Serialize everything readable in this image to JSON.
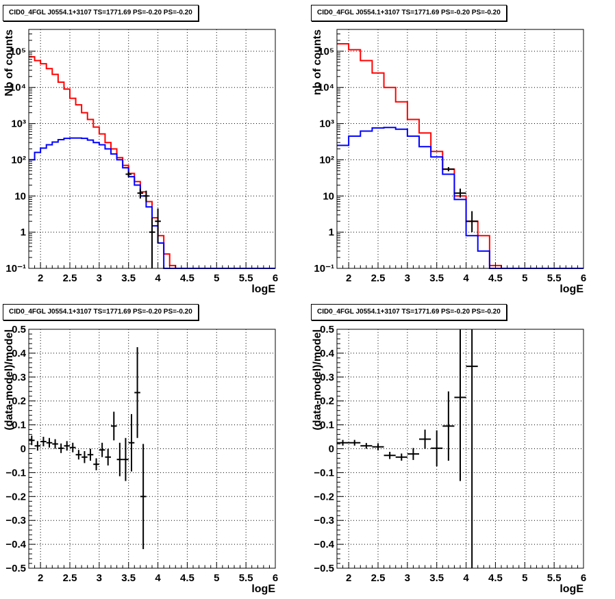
{
  "chart_data": [
    {
      "id": "tl",
      "type": "step-histogram",
      "title": "CID0_4FGL J0554.1+3107 TS=1771.69 PS=-0.20 PS=-0.20",
      "xlabel": "logE",
      "ylabel": "Nb of counts",
      "xlim": [
        1.8,
        6.0
      ],
      "ylim": [
        0.1,
        400000
      ],
      "yscale": "log",
      "grid": true,
      "x_ticks": [
        "2",
        "2.5",
        "3",
        "3.5",
        "4",
        "4.5",
        "5",
        "5.5",
        "6"
      ],
      "x_tick_values": [
        2,
        2.5,
        3,
        3.5,
        4,
        4.5,
        5,
        5.5,
        6
      ],
      "y_ticks": [
        "10⁻¹",
        "1",
        "10",
        "10²",
        "10³",
        "10⁴",
        "10⁵"
      ],
      "y_tick_values": [
        0.1,
        1,
        10,
        100,
        1000,
        10000,
        100000
      ],
      "bin_edges": [
        1.8,
        1.9,
        2.0,
        2.1,
        2.2,
        2.3,
        2.4,
        2.5,
        2.6,
        2.7,
        2.8,
        2.9,
        3.0,
        3.1,
        3.2,
        3.3,
        3.4,
        3.5,
        3.6,
        3.7,
        3.8,
        3.9,
        4.0,
        4.1,
        4.2,
        4.3,
        4.4,
        4.5,
        4.6,
        4.7,
        4.8,
        4.9,
        5.0,
        5.1,
        5.2,
        5.3,
        5.4,
        5.5,
        5.6,
        5.7,
        5.8,
        5.9,
        6.0
      ],
      "series": [
        {
          "color": "#ff0000",
          "values": [
            70000,
            55000,
            45000,
            33000,
            23000,
            14000,
            9000,
            5000,
            3300,
            2000,
            1300,
            800,
            520,
            300,
            200,
            115,
            70,
            42,
            25,
            13,
            7,
            2.5,
            0.8,
            0.25,
            0.12,
            0.1,
            0.1,
            0.1,
            0.1,
            0.1,
            0.1,
            0.1,
            0.1,
            0.1,
            0.1,
            0.1,
            0.1,
            0.1,
            0.1,
            0.1,
            0.1,
            0.1
          ]
        },
        {
          "color": "#0000ff",
          "values": [
            100,
            160,
            210,
            260,
            310,
            360,
            390,
            400,
            400,
            390,
            350,
            300,
            260,
            200,
            145,
            100,
            60,
            34,
            20,
            10,
            5,
            1.5,
            0.5,
            0.1,
            0.1,
            0.1,
            0.1,
            0.1,
            0.1,
            0.1,
            0.1,
            0.1,
            0.1,
            0.1,
            0.1,
            0.1,
            0.1,
            0.1,
            0.1,
            0.1,
            0.1,
            0.1
          ]
        }
      ],
      "data_points": [
        {
          "x": 3.5,
          "y": 40,
          "xerr": 0.05,
          "ylo": 34,
          "yhi": 47
        },
        {
          "x": 3.7,
          "y": 12,
          "xerr": 0.05,
          "ylo": 8.5,
          "yhi": 16
        },
        {
          "x": 3.8,
          "y": 10,
          "xerr": 0.05,
          "ylo": 7,
          "yhi": 14
        },
        {
          "x": 3.9,
          "y": 1,
          "xerr": 0.05,
          "ylo": 0.1,
          "yhi": 2.5
        },
        {
          "x": 4.0,
          "y": 2,
          "xerr": 0.05,
          "ylo": 0.5,
          "yhi": 4.5
        }
      ]
    },
    {
      "id": "tr",
      "type": "step-histogram",
      "title": "CID0_4FGL J0554.1+3107 TS=1771.69 PS=-0.20 PS=-0.20",
      "xlabel": "logE",
      "ylabel": "nb of counts",
      "xlim": [
        1.8,
        6.0
      ],
      "ylim": [
        0.1,
        400000
      ],
      "yscale": "log",
      "grid": true,
      "x_ticks": [
        "2",
        "2.5",
        "3",
        "3.5",
        "4",
        "4.5",
        "5",
        "5.5",
        "6"
      ],
      "x_tick_values": [
        2,
        2.5,
        3,
        3.5,
        4,
        4.5,
        5,
        5.5,
        6
      ],
      "y_ticks": [
        "10⁻¹",
        "1",
        "10",
        "10²",
        "10³",
        "10⁴",
        "10⁵"
      ],
      "y_tick_values": [
        0.1,
        1,
        10,
        100,
        1000,
        10000,
        100000
      ],
      "bin_edges": [
        1.8,
        2.0,
        2.2,
        2.4,
        2.6,
        2.8,
        3.0,
        3.2,
        3.4,
        3.6,
        3.8,
        4.0,
        4.2,
        4.4,
        4.6,
        4.8,
        5.0,
        5.2,
        5.4,
        5.6,
        5.8,
        6.0
      ],
      "series": [
        {
          "color": "#ff0000",
          "values": [
            160000,
            110000,
            55000,
            25000,
            10000,
            4000,
            1300,
            550,
            170,
            55,
            10,
            2,
            0.8,
            0.12,
            0.1,
            0.1,
            0.1,
            0.1,
            0.1,
            0.1,
            0.1
          ]
        },
        {
          "color": "#0000ff",
          "values": [
            250,
            450,
            620,
            760,
            780,
            700,
            450,
            230,
            120,
            40,
            8,
            0.8,
            0.3,
            0.1,
            0.1,
            0.1,
            0.1,
            0.1,
            0.1,
            0.1,
            0.1
          ]
        }
      ],
      "data_points": [
        {
          "x": 3.7,
          "y": 55,
          "xerr": 0.1,
          "ylo": 48,
          "yhi": 63
        },
        {
          "x": 3.9,
          "y": 12,
          "xerr": 0.1,
          "ylo": 9,
          "yhi": 16
        },
        {
          "x": 4.1,
          "y": 2,
          "xerr": 0.1,
          "ylo": 1,
          "yhi": 3.8
        }
      ]
    },
    {
      "id": "bl",
      "type": "scatter-errorbars",
      "title": "CID0_4FGL J0554.1+3107 TS=1771.69 PS=-0.20 PS=-0.20",
      "xlabel": "logE",
      "ylabel": "(data-model)/model",
      "xlim": [
        1.8,
        6.0
      ],
      "ylim": [
        -0.5,
        0.5
      ],
      "yscale": "linear",
      "grid": true,
      "x_ticks": [
        "2",
        "2.5",
        "3",
        "3.5",
        "4",
        "4.5",
        "5",
        "5.5",
        "6"
      ],
      "x_tick_values": [
        2,
        2.5,
        3,
        3.5,
        4,
        4.5,
        5,
        5.5,
        6
      ],
      "y_ticks": [
        "−0.5",
        "−0.4",
        "−0.3",
        "−0.2",
        "−0.1",
        "0",
        "0.1",
        "0.2",
        "0.3",
        "0.4",
        "0.5"
      ],
      "y_tick_values": [
        -0.5,
        -0.4,
        -0.3,
        -0.2,
        -0.1,
        0,
        0.1,
        0.2,
        0.3,
        0.4,
        0.5
      ],
      "data_points": [
        {
          "x": 1.85,
          "y": 0.035,
          "xerr": 0.05,
          "yerr": 0.02
        },
        {
          "x": 1.95,
          "y": 0.012,
          "xerr": 0.05,
          "yerr": 0.02
        },
        {
          "x": 2.05,
          "y": 0.03,
          "xerr": 0.05,
          "yerr": 0.02
        },
        {
          "x": 2.15,
          "y": 0.025,
          "xerr": 0.05,
          "yerr": 0.02
        },
        {
          "x": 2.25,
          "y": 0.02,
          "xerr": 0.05,
          "yerr": 0.02
        },
        {
          "x": 2.35,
          "y": 0.002,
          "xerr": 0.05,
          "yerr": 0.02
        },
        {
          "x": 2.45,
          "y": 0.012,
          "xerr": 0.05,
          "yerr": 0.02
        },
        {
          "x": 2.55,
          "y": 0.005,
          "xerr": 0.05,
          "yerr": 0.02
        },
        {
          "x": 2.65,
          "y": -0.025,
          "xerr": 0.05,
          "yerr": 0.02
        },
        {
          "x": 2.75,
          "y": -0.035,
          "xerr": 0.05,
          "yerr": 0.025
        },
        {
          "x": 2.85,
          "y": -0.025,
          "xerr": 0.05,
          "yerr": 0.025
        },
        {
          "x": 2.95,
          "y": -0.065,
          "xerr": 0.05,
          "yerr": 0.025
        },
        {
          "x": 3.05,
          "y": -0.005,
          "xerr": 0.05,
          "yerr": 0.03
        },
        {
          "x": 3.15,
          "y": -0.035,
          "xerr": 0.05,
          "yerr": 0.035
        },
        {
          "x": 3.25,
          "y": 0.095,
          "xerr": 0.05,
          "yerr": 0.06
        },
        {
          "x": 3.35,
          "y": -0.045,
          "xerr": 0.05,
          "yerr": 0.07
        },
        {
          "x": 3.45,
          "y": -0.045,
          "xerr": 0.05,
          "yerr": 0.09
        },
        {
          "x": 3.55,
          "y": 0.025,
          "xerr": 0.05,
          "yerr": 0.12
        },
        {
          "x": 3.65,
          "y": 0.235,
          "xerr": 0.05,
          "yerr": 0.19
        },
        {
          "x": 3.75,
          "y": -0.2,
          "xerr": 0.05,
          "yerr": 0.22
        }
      ]
    },
    {
      "id": "br",
      "type": "scatter-errorbars",
      "title": "CID0_4FGL J0554.1+3107 TS=1771.69 PS=-0.20 PS=-0.20",
      "xlabel": "logE",
      "ylabel": "(data-model)/model",
      "xlim": [
        1.8,
        6.0
      ],
      "ylim": [
        -0.5,
        0.5
      ],
      "yscale": "linear",
      "grid": true,
      "x_ticks": [
        "2",
        "2.5",
        "3",
        "3.5",
        "4",
        "4.5",
        "5",
        "5.5",
        "6"
      ],
      "x_tick_values": [
        2,
        2.5,
        3,
        3.5,
        4,
        4.5,
        5,
        5.5,
        6
      ],
      "y_ticks": [
        "−0.5",
        "−0.4",
        "−0.3",
        "−0.2",
        "−0.1",
        "0",
        "0.1",
        "0.2",
        "0.3",
        "0.4",
        "0.5"
      ],
      "y_tick_values": [
        -0.5,
        -0.4,
        -0.3,
        -0.2,
        -0.1,
        0,
        0.1,
        0.2,
        0.3,
        0.4,
        0.5
      ],
      "data_points": [
        {
          "x": 1.9,
          "y": 0.025,
          "xerr": 0.1,
          "yerr": 0.012
        },
        {
          "x": 2.1,
          "y": 0.025,
          "xerr": 0.1,
          "yerr": 0.012
        },
        {
          "x": 2.3,
          "y": 0.012,
          "xerr": 0.1,
          "yerr": 0.012
        },
        {
          "x": 2.5,
          "y": 0.008,
          "xerr": 0.1,
          "yerr": 0.015
        },
        {
          "x": 2.7,
          "y": -0.028,
          "xerr": 0.1,
          "yerr": 0.015
        },
        {
          "x": 2.9,
          "y": -0.035,
          "xerr": 0.1,
          "yerr": 0.015
        },
        {
          "x": 3.1,
          "y": -0.022,
          "xerr": 0.1,
          "yerr": 0.025
        },
        {
          "x": 3.3,
          "y": 0.04,
          "xerr": 0.1,
          "yerr": 0.04
        },
        {
          "x": 3.5,
          "y": 0.002,
          "xerr": 0.1,
          "yerr": 0.075
        },
        {
          "x": 3.7,
          "y": 0.095,
          "xerr": 0.1,
          "yerr": 0.145
        },
        {
          "x": 3.9,
          "y": 0.215,
          "xerr": 0.1,
          "yerr": 0.35
        },
        {
          "x": 4.1,
          "y": 0.345,
          "xerr": 0.1,
          "yerr": 0.9
        }
      ]
    }
  ]
}
